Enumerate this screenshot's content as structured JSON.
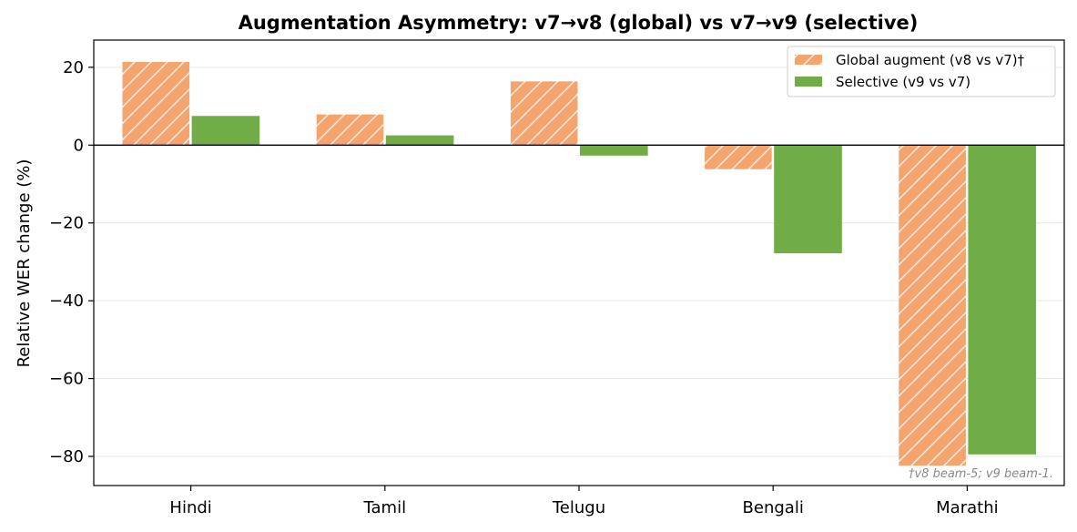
{
  "chart_data": {
    "type": "bar",
    "title": "Augmentation Asymmetry: v7→v8 (global) vs v7→v9 (selective)",
    "xlabel": "",
    "ylabel": "Relative WER change (%)",
    "categories": [
      "Hindi",
      "Tamil",
      "Telugu",
      "Bengali",
      "Marathi"
    ],
    "series": [
      {
        "name": "Global augment (v8 vs v7)†",
        "values": [
          21.5,
          8.0,
          16.5,
          -6.3,
          -82.5
        ],
        "color": "#f4a46c",
        "pattern": "hatch"
      },
      {
        "name": "Selective (v9 vs v7)",
        "values": [
          7.5,
          2.5,
          -2.7,
          -27.8,
          -79.5
        ],
        "color": "#70ad47",
        "pattern": "solid"
      }
    ],
    "ylim": [
      -87.5,
      27
    ],
    "yticks": [
      20,
      0,
      -20,
      -40,
      -60,
      -80
    ],
    "ytick_labels": [
      "20",
      "0",
      "−20",
      "−40",
      "−60",
      "−80"
    ],
    "grid": true,
    "zero_line": true,
    "legend_position": "top-right",
    "footnote": "†v8 beam-5; v9 beam-1."
  }
}
